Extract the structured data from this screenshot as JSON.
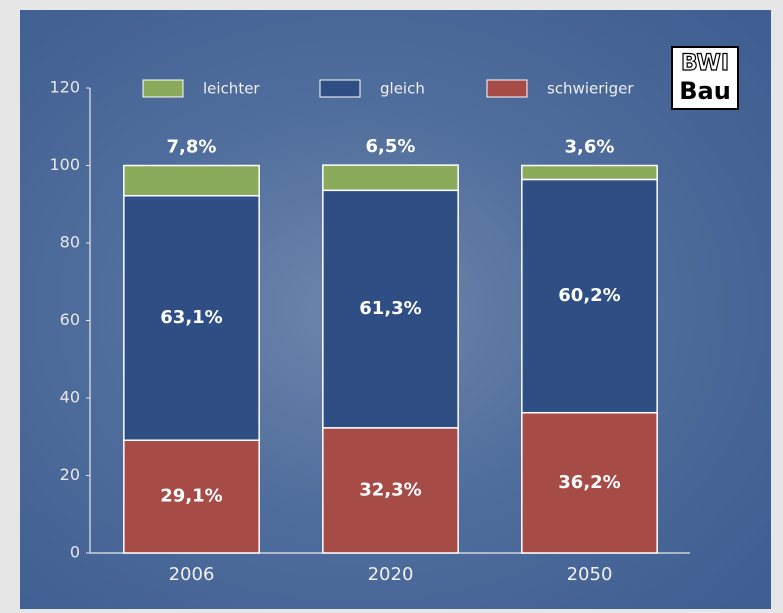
{
  "chart_data": {
    "type": "stacked-bar",
    "categories": [
      "2006",
      "2020",
      "2050"
    ],
    "series": [
      {
        "name": "leichter",
        "color": "#8aab5c",
        "values": [
          7.8,
          6.5,
          3.6
        ],
        "value_labels": [
          "7,8%",
          "6,5%",
          "3,6%"
        ]
      },
      {
        "name": "gleich",
        "color": "#2f4f84",
        "values": [
          63.1,
          61.3,
          60.2
        ],
        "value_labels": [
          "63,1%",
          "61,3%",
          "60,2%"
        ]
      },
      {
        "name": "schwieriger",
        "color": "#a64b46",
        "values": [
          29.1,
          32.3,
          36.2
        ],
        "value_labels": [
          "29,1%",
          "32,3%",
          "36,2%"
        ]
      }
    ],
    "ylim": [
      0,
      120
    ],
    "yticks": [
      0,
      20,
      40,
      60,
      80,
      100,
      120
    ],
    "grid": false,
    "legend": "top"
  },
  "logo": {
    "line1": "BWI",
    "line2": "Bau"
  }
}
